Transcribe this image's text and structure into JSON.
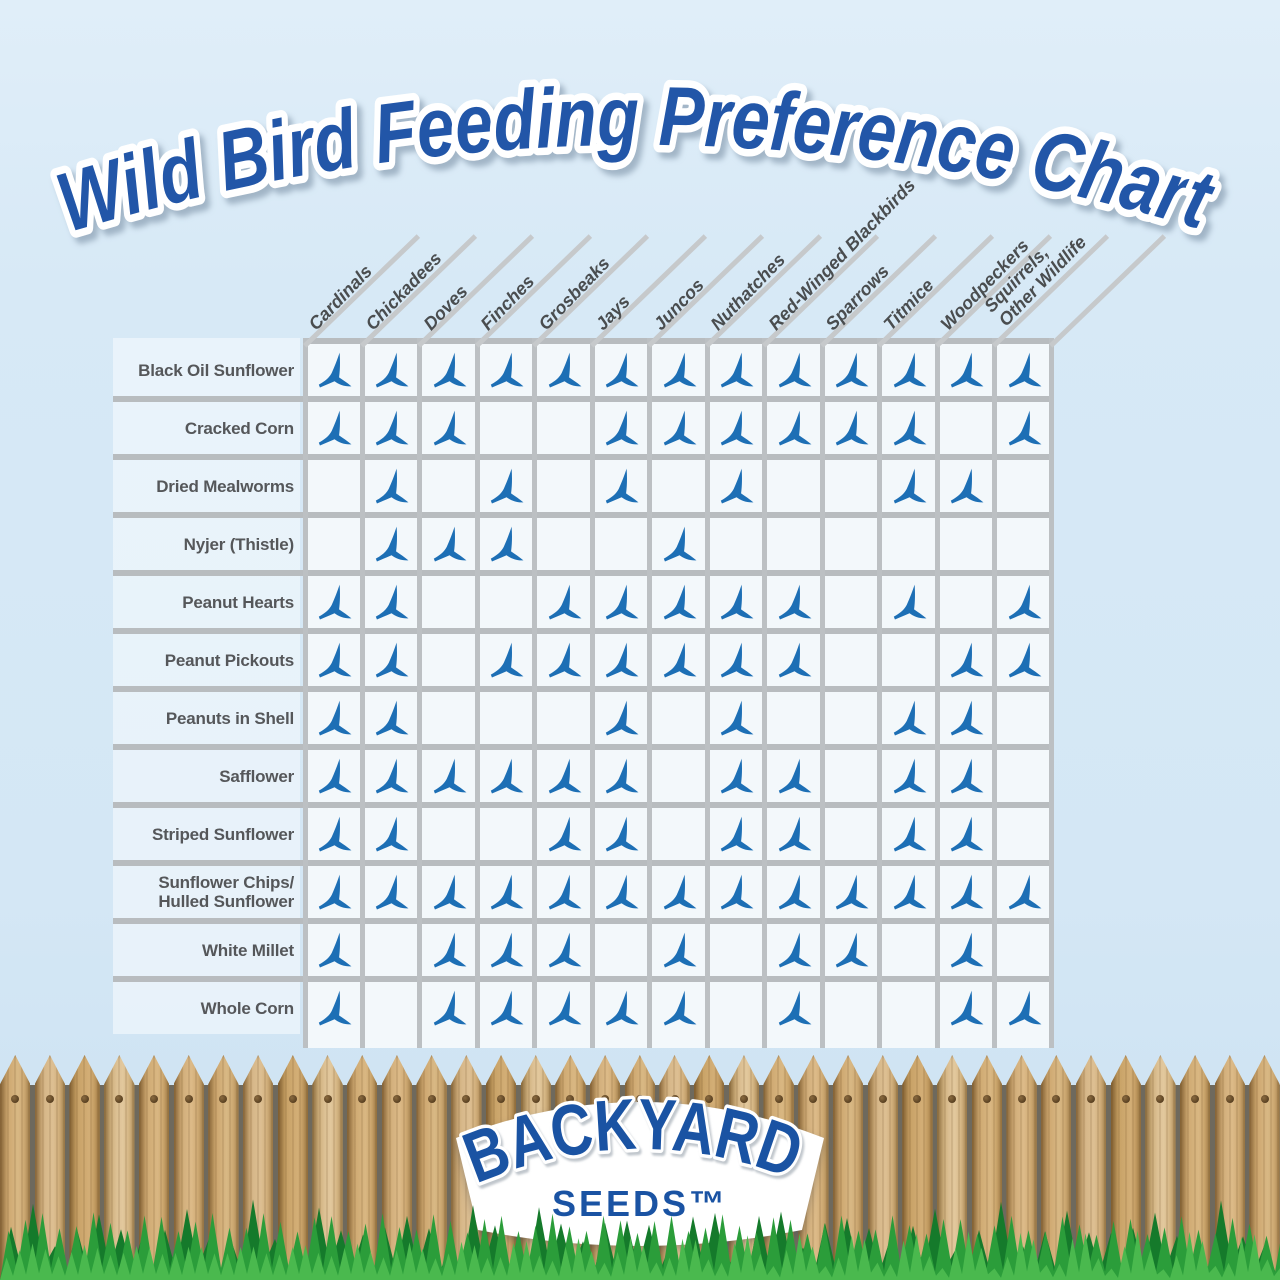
{
  "title": "Wild Bird Feeding Preference Chart",
  "logo": {
    "name": "BACKYARD",
    "sub": "SEEDS™"
  },
  "icons": {
    "preference_marker": "blue-flying-bird-icon"
  },
  "colors": {
    "title_blue": "#2256a8",
    "bird_blue": "#1d6fb5",
    "label_gray": "#55575a",
    "grid_gray": "#b8bcbf",
    "logo_blue": "#1a53a3",
    "background_blue": "#d7e9f6",
    "grass_green": "#2b9d3a",
    "wood_tan": "#cfa972"
  },
  "chart_data": {
    "type": "matrix",
    "title": "Wild Bird Feeding Preference Chart",
    "marker_meaning": "bird icon present = that species eats this food",
    "columns": [
      "Cardinals",
      "Chickadees",
      "Doves",
      "Finches",
      "Grosbeaks",
      "Jays",
      "Juncos",
      "Nuthatches",
      "Red-Winged Blackbirds",
      "Sparrows",
      "Titmice",
      "Woodpeckers",
      "Squirrels,\nOther Wildlife"
    ],
    "rows": [
      {
        "label": "Black Oil Sunflower",
        "cells": [
          1,
          1,
          1,
          1,
          1,
          1,
          1,
          1,
          1,
          1,
          1,
          1,
          1
        ]
      },
      {
        "label": "Cracked Corn",
        "cells": [
          1,
          1,
          1,
          0,
          0,
          1,
          1,
          1,
          1,
          1,
          1,
          0,
          1
        ]
      },
      {
        "label": "Dried Mealworms",
        "cells": [
          0,
          1,
          0,
          1,
          0,
          1,
          0,
          1,
          0,
          0,
          1,
          1,
          0
        ]
      },
      {
        "label": "Nyjer (Thistle)",
        "cells": [
          0,
          1,
          1,
          1,
          0,
          0,
          1,
          0,
          0,
          0,
          0,
          0,
          0
        ]
      },
      {
        "label": "Peanut Hearts",
        "cells": [
          1,
          1,
          0,
          0,
          1,
          1,
          1,
          1,
          1,
          0,
          1,
          0,
          1
        ]
      },
      {
        "label": "Peanut Pickouts",
        "cells": [
          1,
          1,
          0,
          1,
          1,
          1,
          1,
          1,
          1,
          0,
          0,
          1,
          1
        ]
      },
      {
        "label": "Peanuts in Shell",
        "cells": [
          1,
          1,
          0,
          0,
          0,
          1,
          0,
          1,
          0,
          0,
          1,
          1,
          0
        ]
      },
      {
        "label": "Safflower",
        "cells": [
          1,
          1,
          1,
          1,
          1,
          1,
          0,
          1,
          1,
          0,
          1,
          1,
          0
        ]
      },
      {
        "label": "Striped Sunflower",
        "cells": [
          1,
          1,
          0,
          0,
          1,
          1,
          0,
          1,
          1,
          0,
          1,
          1,
          0
        ]
      },
      {
        "label": "Sunflower Chips/\nHulled Sunflower",
        "cells": [
          1,
          1,
          1,
          1,
          1,
          1,
          1,
          1,
          1,
          1,
          1,
          1,
          1
        ]
      },
      {
        "label": "White Millet",
        "cells": [
          1,
          0,
          1,
          1,
          1,
          0,
          1,
          0,
          1,
          1,
          0,
          1,
          0
        ]
      },
      {
        "label": "Whole Corn",
        "cells": [
          1,
          0,
          1,
          1,
          1,
          1,
          1,
          0,
          1,
          0,
          0,
          1,
          1
        ]
      }
    ]
  }
}
